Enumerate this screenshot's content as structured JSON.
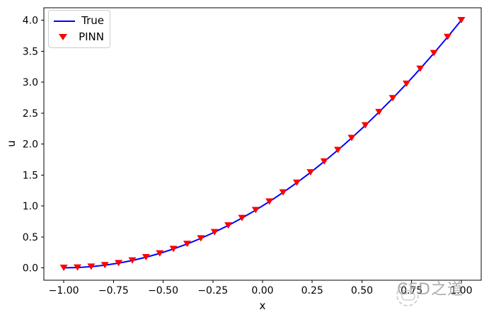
{
  "figure": {
    "background": "#ffffff",
    "frame_color": "#000000"
  },
  "legend": {
    "items": [
      {
        "label": "True",
        "type": "line",
        "color": "#0000ff"
      },
      {
        "label": "PINN",
        "type": "triangle-down-marker",
        "color": "#ff0000"
      }
    ]
  },
  "watermark": {
    "text": "CFD之道",
    "color": "#8c8c8c",
    "logo": "cfd-circle-logo"
  },
  "chart_data": {
    "type": "line",
    "title": "",
    "xlabel": "x",
    "ylabel": "u",
    "xlim": [
      -1.1,
      1.1
    ],
    "ylim": [
      -0.2,
      4.2
    ],
    "grid": false,
    "legend_position": "upper left",
    "x_ticks": [
      -1.0,
      -0.75,
      -0.5,
      -0.25,
      0.0,
      0.25,
      0.5,
      0.75,
      1.0
    ],
    "x_tick_labels": [
      "−1.00",
      "−0.75",
      "−0.50",
      "−0.25",
      "0.00",
      "0.25",
      "0.50",
      "0.75",
      "1.00"
    ],
    "y_ticks": [
      0.0,
      0.5,
      1.0,
      1.5,
      2.0,
      2.5,
      3.0,
      3.5,
      4.0
    ],
    "y_tick_labels": [
      "0.0",
      "0.5",
      "1.0",
      "1.5",
      "2.0",
      "2.5",
      "3.0",
      "3.5",
      "4.0"
    ],
    "x": [
      -1.0,
      -0.931,
      -0.8621,
      -0.7931,
      -0.7241,
      -0.6552,
      -0.5862,
      -0.5172,
      -0.4483,
      -0.3793,
      -0.3103,
      -0.2414,
      -0.1724,
      -0.1034,
      -0.0345,
      0.0345,
      0.1034,
      0.1724,
      0.2414,
      0.3103,
      0.3793,
      0.4483,
      0.5172,
      0.5862,
      0.6552,
      0.7241,
      0.7931,
      0.8621,
      0.931,
      1.0
    ],
    "series": [
      {
        "name": "True",
        "type": "line",
        "color": "#0000ff",
        "linewidth": 2,
        "values": [
          0.0,
          0.0048,
          0.019,
          0.0428,
          0.0761,
          0.1189,
          0.1712,
          0.2331,
          0.3044,
          0.3853,
          0.4756,
          0.5755,
          0.6849,
          0.8038,
          0.9322,
          1.0702,
          1.2176,
          1.3746,
          1.541,
          1.717,
          1.9025,
          2.0975,
          2.302,
          2.5161,
          2.7396,
          2.9727,
          3.2152,
          3.4673,
          3.7289,
          4.0
        ]
      },
      {
        "name": "PINN",
        "type": "scatter",
        "marker": "triangle-down",
        "color": "#ff0000",
        "values": [
          0.0,
          0.0048,
          0.019,
          0.0428,
          0.0761,
          0.1189,
          0.1712,
          0.2331,
          0.3044,
          0.3853,
          0.4756,
          0.5755,
          0.6849,
          0.8038,
          0.9322,
          1.0702,
          1.2176,
          1.3746,
          1.541,
          1.717,
          1.9025,
          2.0975,
          2.302,
          2.5161,
          2.7396,
          2.9727,
          3.2152,
          3.4673,
          3.7289,
          4.0
        ]
      }
    ]
  }
}
